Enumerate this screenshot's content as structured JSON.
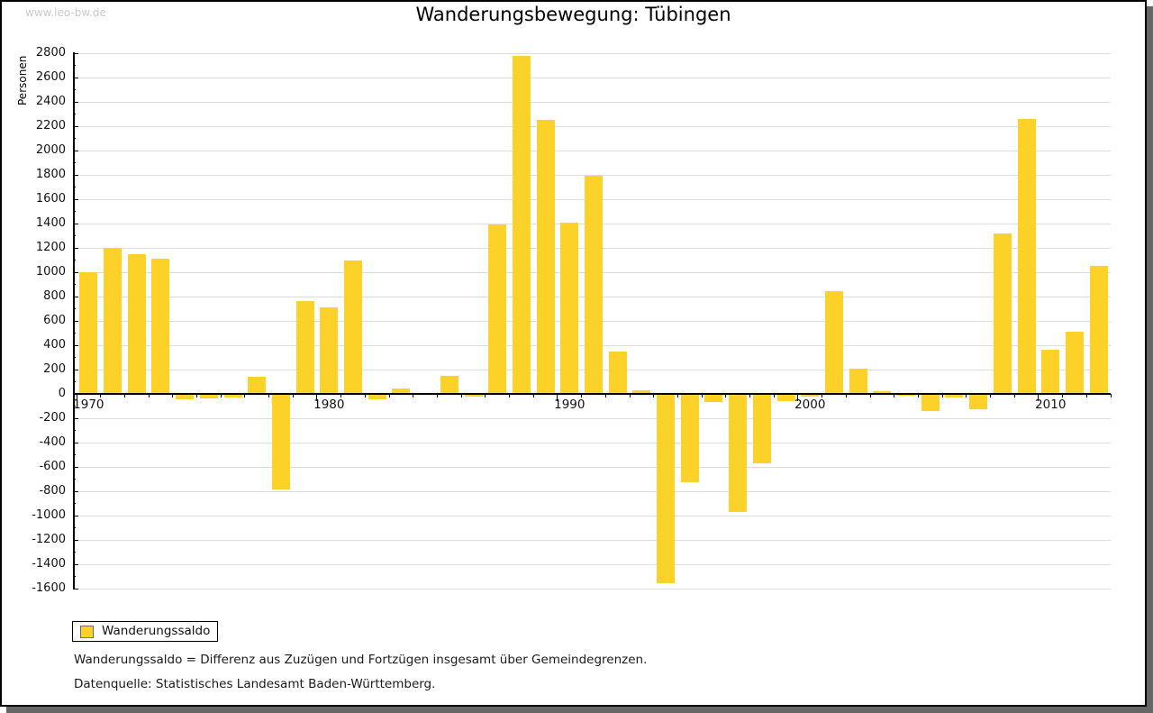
{
  "watermark": "www.leo-bw.de",
  "title": "Wanderungsbewegung: Tübingen",
  "footnotes": [
    "Wanderungssaldo = Differenz aus Zuzügen und Fortzügen insgesamt über Gemeindegrenzen.",
    "Datenquelle: Statistisches Landesamt Baden-Württemberg."
  ],
  "chart_data": {
    "type": "bar",
    "title": "Wanderungsbewegung: Tübingen",
    "xlabel": "",
    "ylabel": "Personen",
    "categories": [
      1970,
      1971,
      1972,
      1973,
      1974,
      1975,
      1976,
      1977,
      1978,
      1979,
      1980,
      1981,
      1982,
      1983,
      1984,
      1985,
      1986,
      1987,
      1988,
      1989,
      1990,
      1991,
      1992,
      1993,
      1994,
      1995,
      1996,
      1997,
      1998,
      1999,
      2000,
      2001,
      2002,
      2003,
      2004,
      2005,
      2006,
      2007,
      2008,
      2009,
      2010,
      2011,
      2012
    ],
    "series": [
      {
        "name": "Wanderungssaldo",
        "color": "#FCD229",
        "values": [
          1000,
          1200,
          1150,
          1110,
          -40,
          -30,
          -25,
          140,
          -780,
          760,
          710,
          1100,
          -35,
          45,
          10,
          150,
          -15,
          1390,
          2780,
          2250,
          1410,
          1790,
          350,
          30,
          -1550,
          -720,
          -60,
          -960,
          -560,
          -50,
          -15,
          845,
          210,
          20,
          -10,
          -130,
          -20,
          -120,
          1320,
          2260,
          360,
          510,
          1050
        ]
      }
    ],
    "x_tick_labels": [
      "1970",
      "1980",
      "1990",
      "2000",
      "2010"
    ],
    "ylim": [
      -1600,
      2800
    ],
    "y_tick_step": 200,
    "y_minor_tick_step": 100,
    "grid": true,
    "grid_color": "#dddddd",
    "legend_position": "bottom-left"
  }
}
